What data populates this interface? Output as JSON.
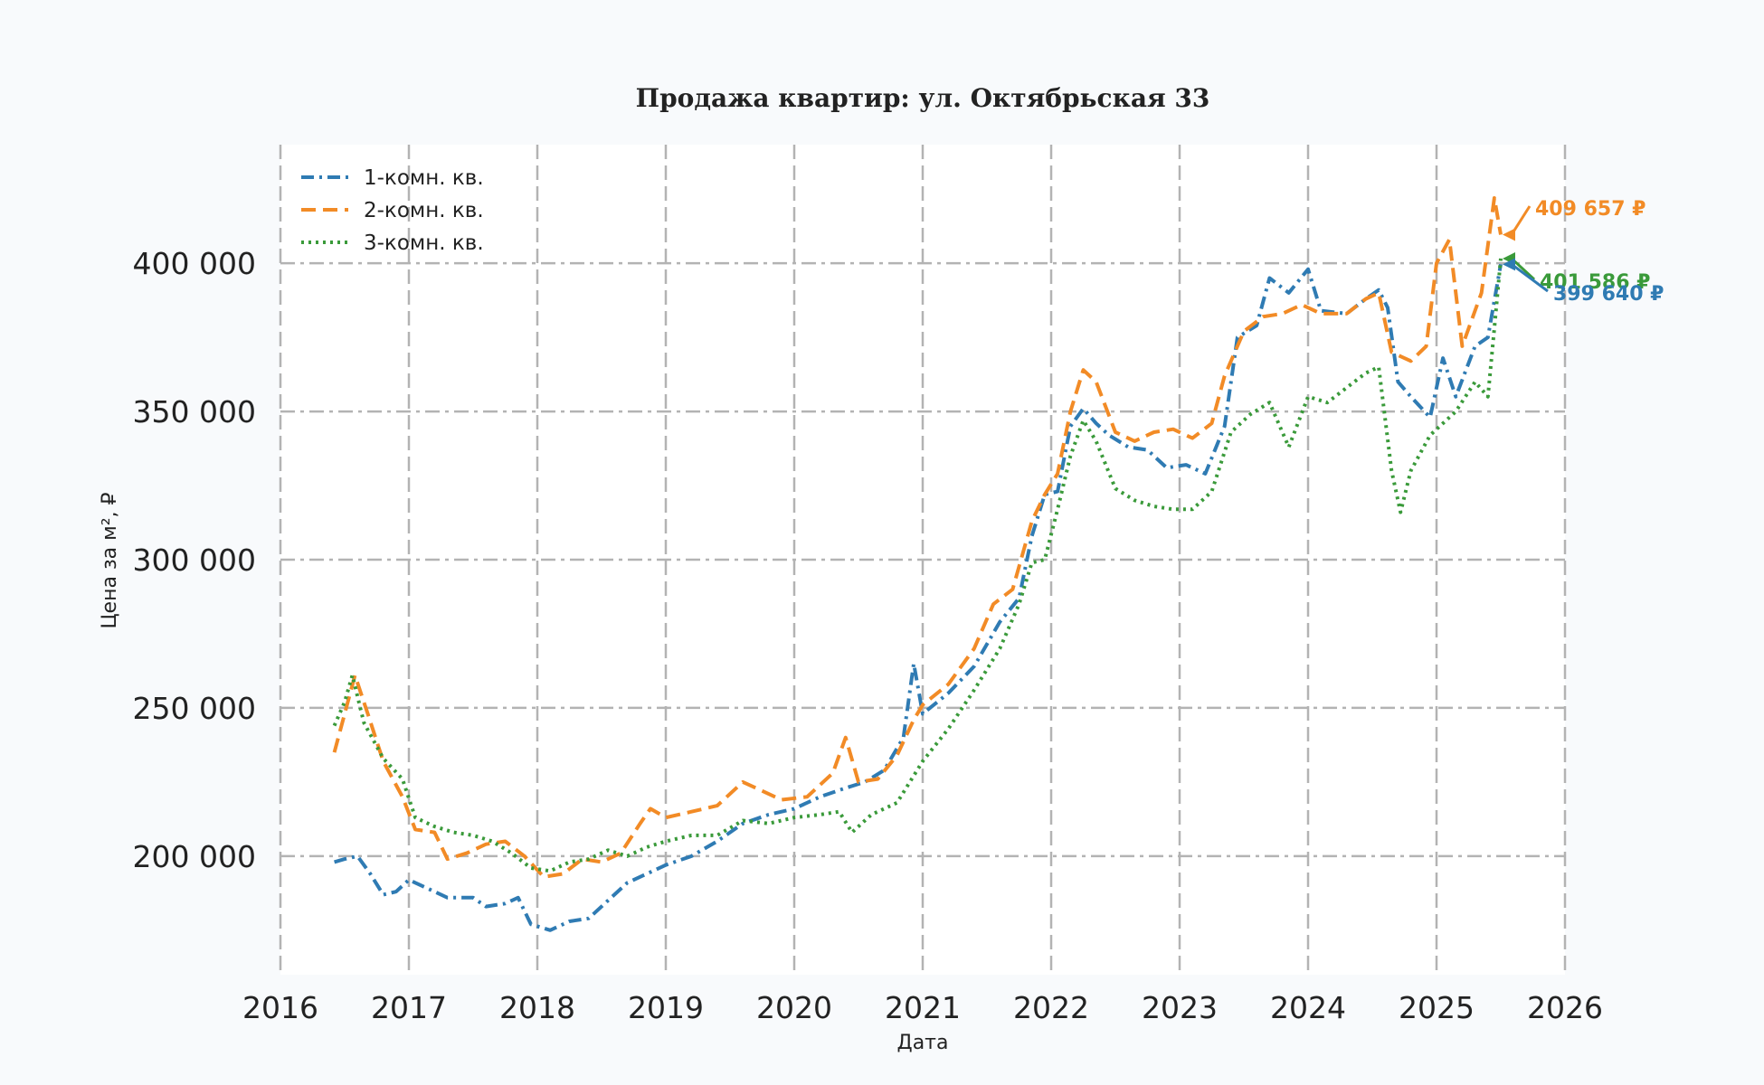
{
  "chart_data": {
    "type": "line",
    "title": "Продажа квартир: ул. Октябрьская 33",
    "xlabel": "Дата",
    "ylabel": "Цена за м², ₽",
    "xlim": [
      2016,
      2026
    ],
    "ylim": [
      160000,
      440000
    ],
    "x_ticks": [
      2016,
      2017,
      2018,
      2019,
      2020,
      2021,
      2022,
      2023,
      2024,
      2025,
      2026
    ],
    "x_tick_labels": [
      "2016",
      "2017",
      "2018",
      "2019",
      "2020",
      "2021",
      "2022",
      "2023",
      "2024",
      "2025",
      "2026"
    ],
    "y_ticks": [
      200000,
      250000,
      300000,
      350000,
      400000
    ],
    "y_tick_labels": [
      "200 000",
      "250 000",
      "300 000",
      "350 000",
      "400 000"
    ],
    "grid": true,
    "legend_position": "top-left",
    "series": [
      {
        "name": "1-комн. кв.",
        "color": "#2f7bb3",
        "dash": "dash-dot",
        "points": [
          [
            2016.42,
            198000
          ],
          [
            2016.5,
            199000
          ],
          [
            2016.6,
            200000
          ],
          [
            2016.7,
            194000
          ],
          [
            2016.8,
            187000
          ],
          [
            2016.9,
            188000
          ],
          [
            2017.0,
            192000
          ],
          [
            2017.15,
            189000
          ],
          [
            2017.3,
            186000
          ],
          [
            2017.5,
            186000
          ],
          [
            2017.6,
            183000
          ],
          [
            2017.75,
            184000
          ],
          [
            2017.85,
            186000
          ],
          [
            2017.95,
            177000
          ],
          [
            2018.1,
            175000
          ],
          [
            2018.25,
            178000
          ],
          [
            2018.4,
            179000
          ],
          [
            2018.55,
            185000
          ],
          [
            2018.7,
            191000
          ],
          [
            2018.85,
            194000
          ],
          [
            2019.0,
            197000
          ],
          [
            2019.2,
            200000
          ],
          [
            2019.4,
            205000
          ],
          [
            2019.6,
            211000
          ],
          [
            2019.8,
            214000
          ],
          [
            2020.0,
            216000
          ],
          [
            2020.2,
            220000
          ],
          [
            2020.4,
            223000
          ],
          [
            2020.55,
            225000
          ],
          [
            2020.7,
            229000
          ],
          [
            2020.85,
            240000
          ],
          [
            2020.93,
            265000
          ],
          [
            2021.0,
            248000
          ],
          [
            2021.2,
            255000
          ],
          [
            2021.4,
            264000
          ],
          [
            2021.6,
            279000
          ],
          [
            2021.75,
            287000
          ],
          [
            2021.85,
            308000
          ],
          [
            2021.95,
            322000
          ],
          [
            2022.05,
            323000
          ],
          [
            2022.15,
            345000
          ],
          [
            2022.25,
            351000
          ],
          [
            2022.35,
            346000
          ],
          [
            2022.45,
            342000
          ],
          [
            2022.6,
            338000
          ],
          [
            2022.75,
            337000
          ],
          [
            2022.9,
            331000
          ],
          [
            2023.05,
            332000
          ],
          [
            2023.2,
            329000
          ],
          [
            2023.35,
            345000
          ],
          [
            2023.45,
            375000
          ],
          [
            2023.6,
            379000
          ],
          [
            2023.7,
            395000
          ],
          [
            2023.85,
            390000
          ],
          [
            2024.0,
            398000
          ],
          [
            2024.1,
            384000
          ],
          [
            2024.3,
            383000
          ],
          [
            2024.45,
            388000
          ],
          [
            2024.55,
            391000
          ],
          [
            2024.62,
            385000
          ],
          [
            2024.7,
            360000
          ],
          [
            2024.8,
            355000
          ],
          [
            2024.95,
            348000
          ],
          [
            2025.05,
            368000
          ],
          [
            2025.15,
            355000
          ],
          [
            2025.3,
            372000
          ],
          [
            2025.4,
            375000
          ],
          [
            2025.5,
            399640
          ]
        ]
      },
      {
        "name": "2-комн. кв.",
        "color": "#f28b26",
        "dash": "dashed",
        "points": [
          [
            2016.42,
            235000
          ],
          [
            2016.5,
            248000
          ],
          [
            2016.58,
            261000
          ],
          [
            2016.68,
            248000
          ],
          [
            2016.8,
            232000
          ],
          [
            2016.95,
            220000
          ],
          [
            2017.05,
            209000
          ],
          [
            2017.2,
            208000
          ],
          [
            2017.3,
            199000
          ],
          [
            2017.45,
            201000
          ],
          [
            2017.6,
            204000
          ],
          [
            2017.75,
            205000
          ],
          [
            2017.9,
            200000
          ],
          [
            2018.05,
            193000
          ],
          [
            2018.2,
            194000
          ],
          [
            2018.35,
            199000
          ],
          [
            2018.5,
            198000
          ],
          [
            2018.65,
            201000
          ],
          [
            2018.8,
            211000
          ],
          [
            2018.88,
            216000
          ],
          [
            2019.0,
            213000
          ],
          [
            2019.2,
            215000
          ],
          [
            2019.4,
            217000
          ],
          [
            2019.6,
            225000
          ],
          [
            2019.75,
            222000
          ],
          [
            2019.9,
            219000
          ],
          [
            2020.1,
            220000
          ],
          [
            2020.3,
            228000
          ],
          [
            2020.4,
            240000
          ],
          [
            2020.5,
            225000
          ],
          [
            2020.65,
            226000
          ],
          [
            2020.8,
            234000
          ],
          [
            2020.93,
            246000
          ],
          [
            2021.0,
            251000
          ],
          [
            2021.2,
            258000
          ],
          [
            2021.4,
            270000
          ],
          [
            2021.55,
            285000
          ],
          [
            2021.7,
            290000
          ],
          [
            2021.85,
            313000
          ],
          [
            2021.95,
            322000
          ],
          [
            2022.05,
            329000
          ],
          [
            2022.15,
            350000
          ],
          [
            2022.25,
            364000
          ],
          [
            2022.35,
            360000
          ],
          [
            2022.5,
            343000
          ],
          [
            2022.65,
            340000
          ],
          [
            2022.8,
            343000
          ],
          [
            2022.95,
            344000
          ],
          [
            2023.1,
            341000
          ],
          [
            2023.25,
            346000
          ],
          [
            2023.35,
            362000
          ],
          [
            2023.5,
            377000
          ],
          [
            2023.65,
            382000
          ],
          [
            2023.8,
            383000
          ],
          [
            2023.95,
            386000
          ],
          [
            2024.1,
            383000
          ],
          [
            2024.3,
            383000
          ],
          [
            2024.45,
            388000
          ],
          [
            2024.55,
            390000
          ],
          [
            2024.65,
            370000
          ],
          [
            2024.8,
            367000
          ],
          [
            2024.92,
            372000
          ],
          [
            2025.0,
            400000
          ],
          [
            2025.1,
            408000
          ],
          [
            2025.2,
            372000
          ],
          [
            2025.35,
            390000
          ],
          [
            2025.45,
            422000
          ],
          [
            2025.5,
            409657
          ]
        ]
      },
      {
        "name": "3-комн. кв.",
        "color": "#3a9a3a",
        "dash": "dotted",
        "points": [
          [
            2016.42,
            244000
          ],
          [
            2016.5,
            252000
          ],
          [
            2016.56,
            261000
          ],
          [
            2016.65,
            245000
          ],
          [
            2016.8,
            233000
          ],
          [
            2016.95,
            226000
          ],
          [
            2017.05,
            213000
          ],
          [
            2017.2,
            210000
          ],
          [
            2017.35,
            208000
          ],
          [
            2017.5,
            207000
          ],
          [
            2017.65,
            205000
          ],
          [
            2017.8,
            201000
          ],
          [
            2017.95,
            196000
          ],
          [
            2018.1,
            195000
          ],
          [
            2018.25,
            198000
          ],
          [
            2018.4,
            199000
          ],
          [
            2018.55,
            202000
          ],
          [
            2018.7,
            200000
          ],
          [
            2018.85,
            203000
          ],
          [
            2019.0,
            205000
          ],
          [
            2019.2,
            207000
          ],
          [
            2019.4,
            207000
          ],
          [
            2019.6,
            212000
          ],
          [
            2019.8,
            211000
          ],
          [
            2020.0,
            213000
          ],
          [
            2020.2,
            214000
          ],
          [
            2020.35,
            215000
          ],
          [
            2020.45,
            208000
          ],
          [
            2020.6,
            214000
          ],
          [
            2020.8,
            218000
          ],
          [
            2021.0,
            232000
          ],
          [
            2021.2,
            243000
          ],
          [
            2021.4,
            256000
          ],
          [
            2021.6,
            270000
          ],
          [
            2021.75,
            285000
          ],
          [
            2021.85,
            299000
          ],
          [
            2021.95,
            300000
          ],
          [
            2022.05,
            317000
          ],
          [
            2022.15,
            335000
          ],
          [
            2022.25,
            347000
          ],
          [
            2022.35,
            340000
          ],
          [
            2022.5,
            324000
          ],
          [
            2022.65,
            320000
          ],
          [
            2022.8,
            318000
          ],
          [
            2022.95,
            317000
          ],
          [
            2023.1,
            317000
          ],
          [
            2023.25,
            323000
          ],
          [
            2023.4,
            343000
          ],
          [
            2023.55,
            349000
          ],
          [
            2023.7,
            353000
          ],
          [
            2023.85,
            338000
          ],
          [
            2024.0,
            355000
          ],
          [
            2024.15,
            353000
          ],
          [
            2024.3,
            358000
          ],
          [
            2024.45,
            363000
          ],
          [
            2024.55,
            365000
          ],
          [
            2024.65,
            330000
          ],
          [
            2024.72,
            316000
          ],
          [
            2024.8,
            330000
          ],
          [
            2024.95,
            342000
          ],
          [
            2025.05,
            346000
          ],
          [
            2025.15,
            350000
          ],
          [
            2025.3,
            360000
          ],
          [
            2025.4,
            355000
          ],
          [
            2025.45,
            378000
          ],
          [
            2025.5,
            401586
          ]
        ]
      }
    ],
    "annotations": [
      {
        "text": "409 657 ₽",
        "series": "2-комн. кв.",
        "value": 409657,
        "color": "#f28b26"
      },
      {
        "text": "401 586 ₽",
        "series": "3-комн. кв.",
        "value": 401586,
        "color": "#3a9a3a"
      },
      {
        "text": "399 640 ₽",
        "series": "1-комн. кв.",
        "value": 399640,
        "color": "#2f7bb3"
      }
    ]
  }
}
